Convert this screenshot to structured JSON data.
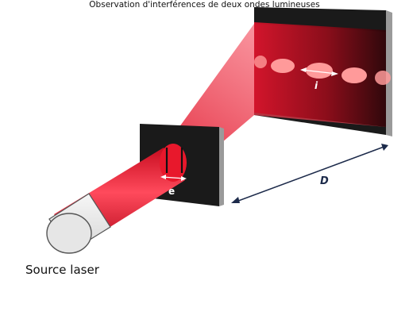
{
  "labels": {
    "source": "Source laser",
    "slit_spacing": "e",
    "distance": "D",
    "fringe_spacing": "i"
  },
  "caption": "Observation d'interférences de deux ondes lumineuses",
  "colors": {
    "beam": "#e0162b",
    "beam_dark": "#b90e1f",
    "screen": "#1a1a1a",
    "screen_edge": "#9a9a9a",
    "laser_body": "#e9e9e9",
    "fringe": "#ff9a9a"
  }
}
